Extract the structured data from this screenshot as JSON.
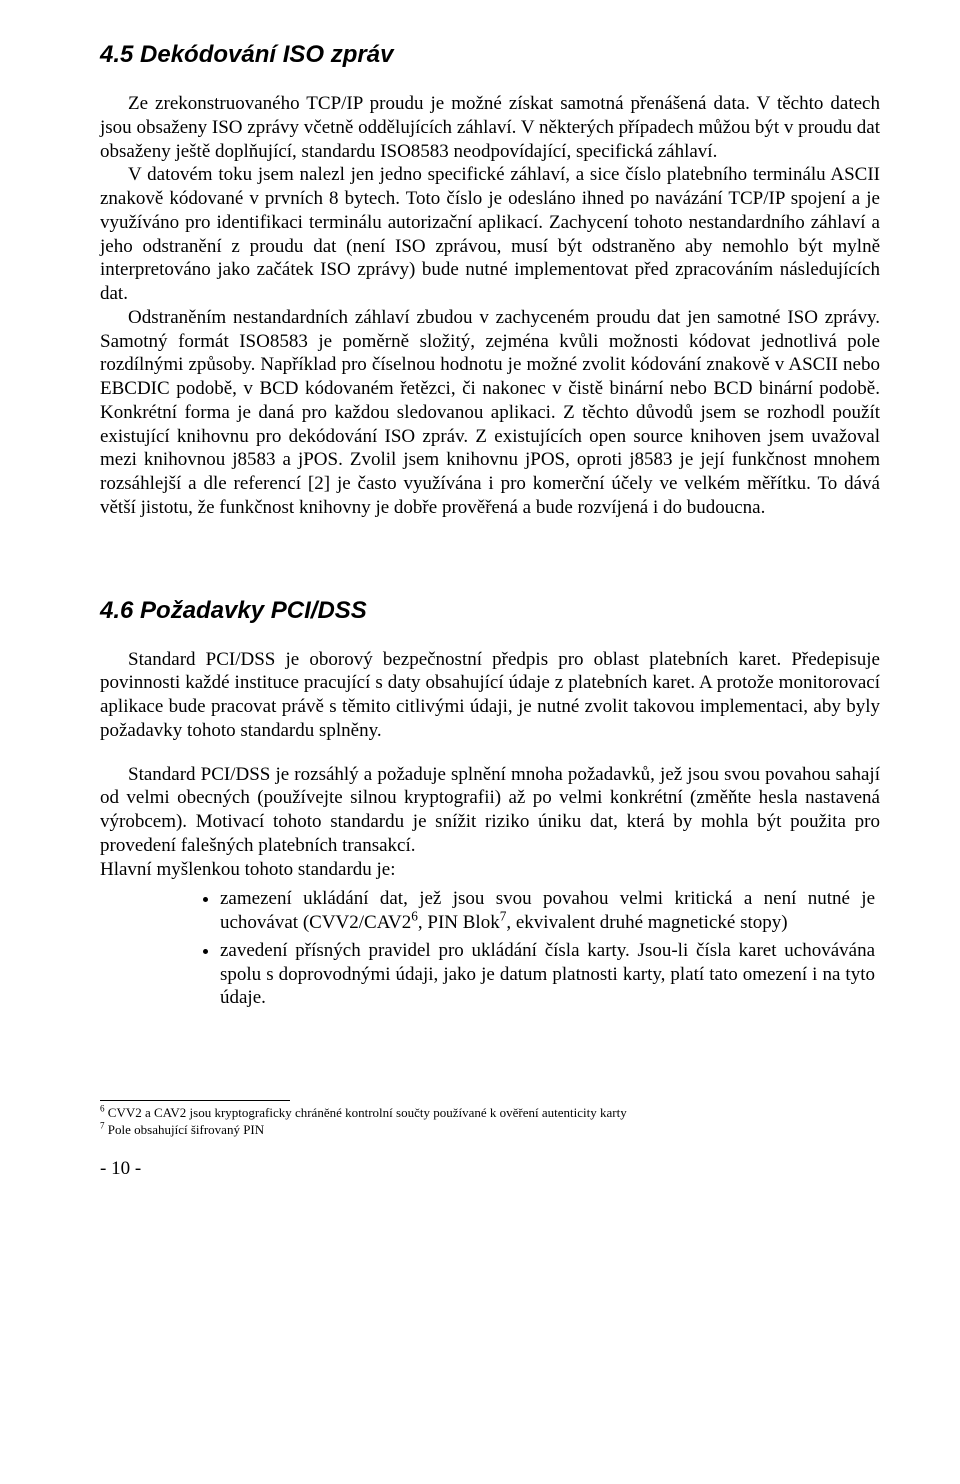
{
  "section45": {
    "heading": "4.5 Dekódování ISO zpráv",
    "p1": "Ze zrekonstruovaného TCP/IP proudu je možné získat samotná přenášená data. V těchto datech jsou obsaženy ISO zprávy včetně oddělujících záhlaví. V některých případech můžou být v proudu dat obsaženy ještě doplňující, standardu ISO8583 neodpovídající, specifická záhlaví.",
    "p2": "V datovém toku jsem nalezl jen jedno specifické záhlaví, a sice číslo platebního terminálu ASCII znakově kódované v prvních 8 bytech. Toto číslo je odesláno ihned po navázání TCP/IP spojení a je využíváno pro identifikaci terminálu autorizační aplikací. Zachycení tohoto nestandardního záhlaví a jeho odstranění z proudu dat (není ISO zprávou, musí být odstraněno aby nemohlo být mylně interpretováno jako začátek ISO zprávy)  bude nutné implementovat před zpracováním následujících dat.",
    "p3": "Odstraněním nestandardních záhlaví zbudou v zachyceném proudu dat jen samotné ISO zprávy. Samotný formát ISO8583 je poměrně složitý, zejména kvůli možnosti kódovat jednotlivá pole rozdílnými způsoby. Například pro číselnou hodnotu je možné zvolit kódování znakově v ASCII nebo EBCDIC podobě, v BCD kódovaném řetězci, či nakonec v čistě binární nebo BCD binární podobě. Konkrétní forma je daná pro každou sledovanou  aplikaci. Z těchto důvodů  jsem se rozhodl použít existující knihovnu pro dekódování ISO zpráv. Z existujících open source knihoven jsem uvažoval mezi knihovnou j8583 a jPOS. Zvolil jsem knihovnu jPOS, oproti j8583 je její funkčnost mnohem rozsáhlejší a dle referencí [2] je často využívána i pro komerční účely ve velkém měřítku. To dává větší jistotu, že funkčnost knihovny je dobře prověřená a bude rozvíjená i do budoucna."
  },
  "section46": {
    "heading": "4.6 Požadavky PCI/DSS",
    "p1": "Standard PCI/DSS je oborový bezpečnostní předpis pro oblast platebních karet. Předepisuje povinnosti každé instituce pracující s daty obsahující údaje z platebních karet. A protože monitorovací aplikace bude pracovat právě s těmito citlivými údaji, je nutné zvolit takovou implementaci, aby byly požadavky tohoto standardu splněny.",
    "p2": "Standard PCI/DSS je rozsáhlý a požaduje splnění mnoha požadavků, jež jsou svou povahou sahají od velmi obecných (používejte silnou kryptografii) až po velmi konkrétní (změňte hesla nastavená výrobcem). Motivací tohoto standardu je snížit riziko úniku dat, která by mohla být použita pro provedení falešných platebních transakcí.",
    "p3": "Hlavní myšlenkou tohoto standardu je:",
    "bullets": {
      "b1_a": "zamezení ukládání dat, jež jsou svou povahou velmi kritická a není nutné je uchovávat  (CVV2/CAV2",
      "b1_b": ", PIN Blok",
      "b1_c": ", ekvivalent druhé magnetické stopy)",
      "b2": "zavedení přísných pravidel pro ukládání čísla karty. Jsou-li čísla karet uchovávána spolu s doprovodnými údaji, jako je datum platnosti karty, platí tato omezení i na tyto údaje."
    },
    "fn_marks": {
      "six": "6",
      "seven": "7"
    }
  },
  "footnotes": {
    "f6_mark": "6",
    "f6_text": " CVV2 a CAV2 jsou kryptograficky chráněné kontrolní součty používané k ověření autenticity karty",
    "f7_mark": "7",
    "f7_text": " Pole obsahující šifrovaný PIN"
  },
  "page_number": "- 10 -"
}
